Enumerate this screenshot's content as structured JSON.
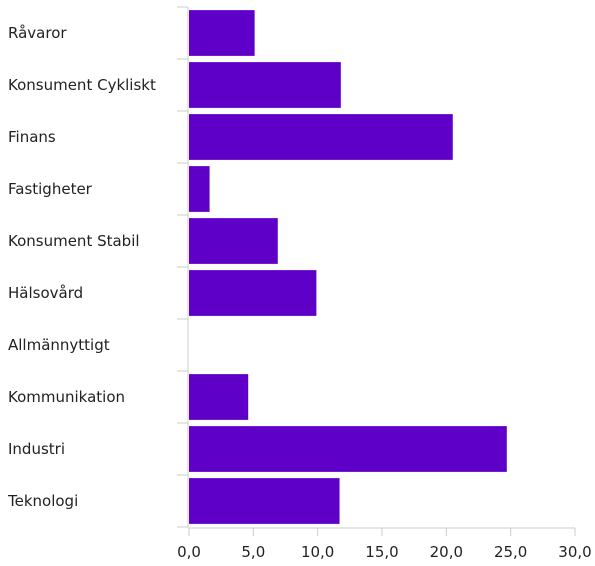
{
  "chart_data": {
    "type": "bar",
    "orientation": "horizontal",
    "categories": [
      "Råvaror",
      "Konsument Cykliskt",
      "Finans",
      "Fastigheter",
      "Konsument Stabil",
      "Hälsovård",
      "Allmännyttigt",
      "Kommunikation",
      "Industri",
      "Teknologi"
    ],
    "values": [
      5.1,
      11.8,
      20.5,
      1.6,
      6.9,
      9.9,
      0.0,
      4.6,
      24.7,
      11.7
    ],
    "xlim": [
      0,
      30
    ],
    "xticks": [
      "0,0",
      "5,0",
      "10,0",
      "15,0",
      "20,0",
      "25,0",
      "30,0"
    ],
    "title": "",
    "xlabel": "",
    "ylabel": "",
    "grid": false,
    "bar_color": "#5e00c8"
  }
}
